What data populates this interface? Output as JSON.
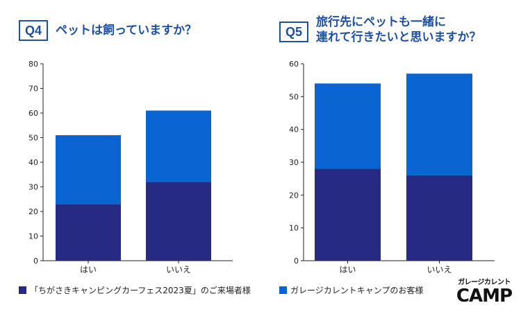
{
  "q4": {
    "badge": "Q4",
    "title_lines": [
      "ペットは飼っていますか？"
    ]
  },
  "q5": {
    "badge": "Q5",
    "title_lines": [
      "旅行先にペットも一緒に",
      "連れて行きたいと思いますか？"
    ]
  },
  "colors": {
    "dark": "#262a82",
    "light": "#0a64d2",
    "title": "#1e50a0"
  },
  "legend": {
    "left": "「ちがさきキャンピングカーフェス2023夏」のご来場者様",
    "right": "ガレージカレントキャンプのお客様"
  },
  "logo": {
    "line1": "ガレージカレント",
    "line2": "CAMP"
  },
  "chart_data": [
    {
      "type": "bar",
      "stacked": true,
      "categories": [
        "はい",
        "いいえ"
      ],
      "series": [
        {
          "color": "#262a82",
          "values": [
            23,
            32
          ]
        },
        {
          "color": "#0a64d2",
          "values": [
            28,
            29
          ]
        }
      ],
      "totals": [
        51,
        61
      ],
      "ylim": [
        0,
        80
      ],
      "yticks": [
        "0",
        "10",
        "20",
        "30",
        "40",
        "50",
        "60",
        "70",
        "80"
      ],
      "grid": false
    },
    {
      "type": "bar",
      "stacked": true,
      "categories": [
        "はい",
        "いいえ"
      ],
      "series": [
        {
          "color": "#262a82",
          "values": [
            28,
            26
          ]
        },
        {
          "color": "#0a64d2",
          "values": [
            26,
            31
          ]
        }
      ],
      "totals": [
        54,
        57
      ],
      "ylim": [
        0,
        60
      ],
      "yticks": [
        "0",
        "10",
        "20",
        "30",
        "40",
        "50",
        "60"
      ],
      "grid": false
    }
  ]
}
